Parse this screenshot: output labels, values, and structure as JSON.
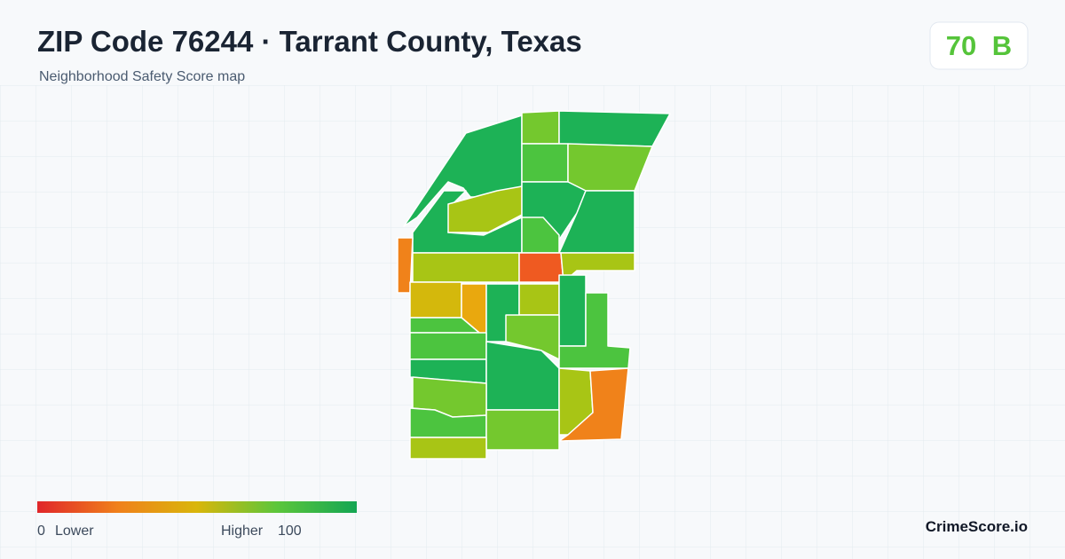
{
  "header": {
    "title": "ZIP Code 76244 · Tarrant County, Texas",
    "subtitle": "Neighborhood Safety Score map"
  },
  "score": {
    "value": 70,
    "grade": "B"
  },
  "legend": {
    "min": 0,
    "min_label": "Lower",
    "max_label": "Higher",
    "max": 100
  },
  "brand": "CrimeScore.io"
}
